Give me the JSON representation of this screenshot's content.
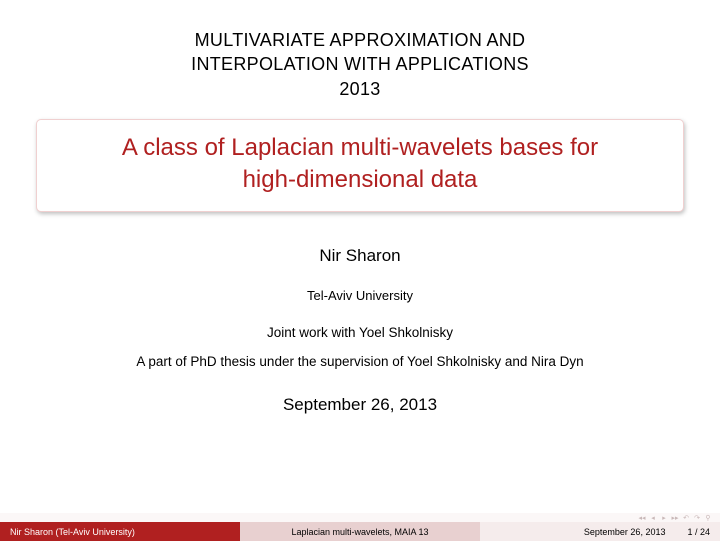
{
  "conference": {
    "line1": "MULTIVARIATE APPROXIMATION AND",
    "line2": "INTERPOLATION WITH APPLICATIONS",
    "year": "2013"
  },
  "title": {
    "line1": "A class of Laplacian multi-wavelets bases for",
    "line2": "high-dimensional data"
  },
  "author": "Nir Sharon",
  "affiliation": "Tel-Aviv University",
  "joint": "Joint work with Yoel Shkolnisky",
  "supervision": "A part of PhD thesis under the supervision of Yoel Shkolnisky and Nira Dyn",
  "date": "September 26, 2013",
  "footer": {
    "left": "Nir Sharon (Tel-Aviv University)",
    "center": "Laplacian multi-wavelets, MAIA 13",
    "right_date": "September 26, 2013",
    "page": "1 / 24"
  },
  "colors": {
    "accent": "#b02020",
    "footer_center_bg": "#e8d0d0",
    "footer_right_bg": "#f5ecec",
    "title_border": "#f0d0d0"
  }
}
